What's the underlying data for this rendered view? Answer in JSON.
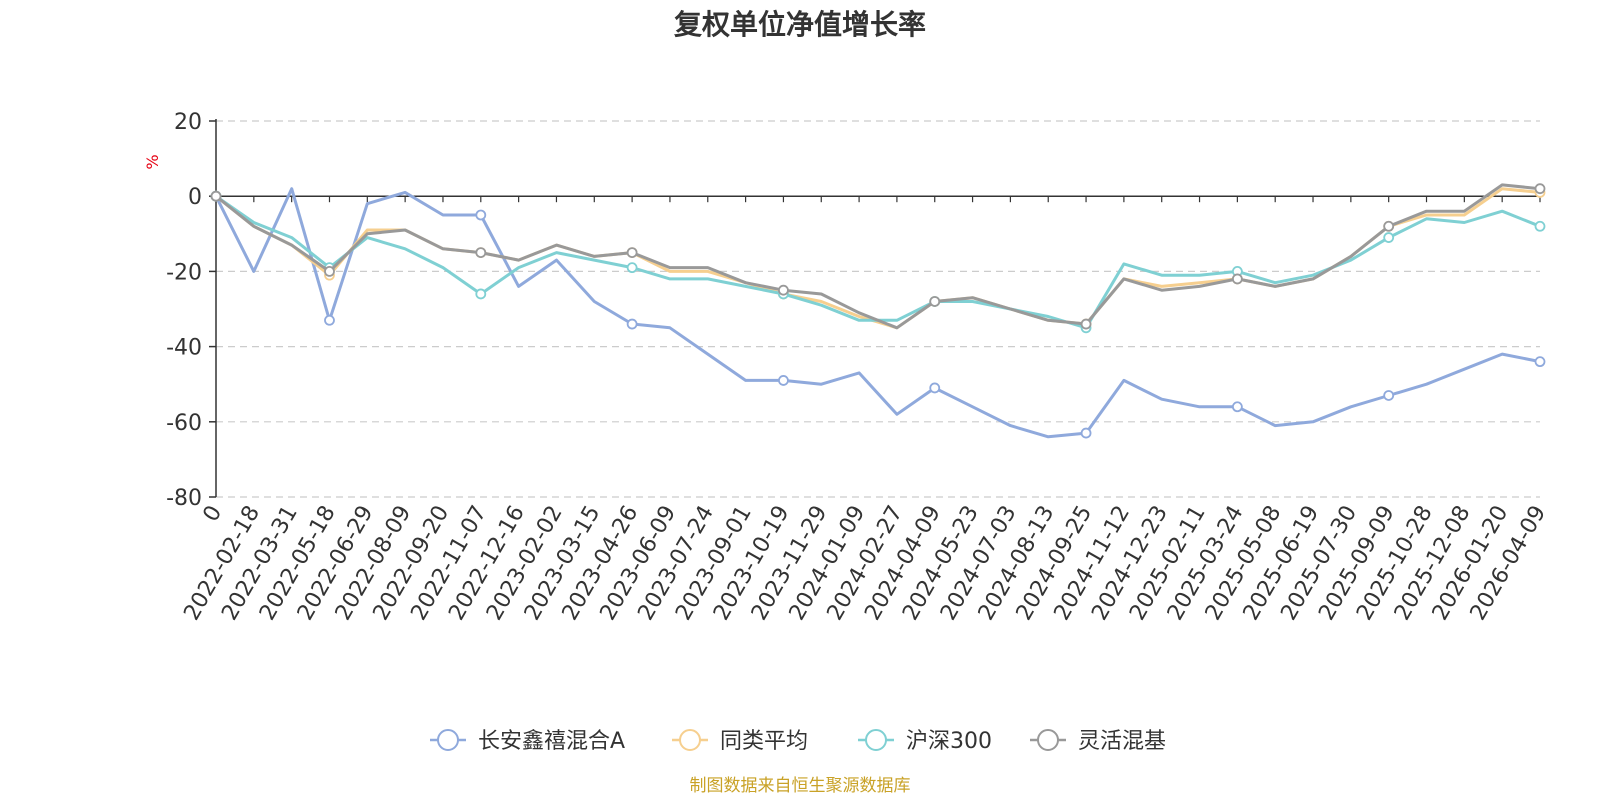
{
  "chart_data": {
    "type": "line",
    "title": "复权单位净值增长率",
    "ylabel": "%",
    "ylim": [
      -80,
      20
    ],
    "yticks": [
      "20",
      "0",
      "-20",
      "-40",
      "-60",
      "-80"
    ],
    "grid": true,
    "legend_position": "bottom",
    "x": [
      "0",
      "2022-02-18",
      "2022-03-31",
      "2022-05-18",
      "2022-06-29",
      "2022-08-09",
      "2022-09-20",
      "2022-11-07",
      "2022-12-16",
      "2023-02-02",
      "2023-03-15",
      "2023-04-26",
      "2023-06-09",
      "2023-07-24",
      "2023-09-01",
      "2023-10-19",
      "2023-11-29",
      "2024-01-09",
      "2024-02-27",
      "2024-04-09",
      "2024-05-23",
      "2024-07-03",
      "2024-08-13",
      "2024-09-25",
      "2024-11-12",
      "2024-12-23",
      "2025-02-11",
      "2025-03-24",
      "2025-05-08",
      "2025-06-19",
      "2025-07-30",
      "2025-09-09",
      "2025-10-28",
      "2025-12-08",
      "2026-01-20",
      "2026-04-09"
    ],
    "series": [
      {
        "name": "长安鑫禧混合A",
        "color": "#8fa9dc",
        "values": [
          0,
          -20,
          2,
          -33,
          -2,
          1,
          -5,
          -5,
          -24,
          -17,
          -28,
          -34,
          -35,
          -42,
          -49,
          -49,
          -50,
          -47,
          -58,
          -51,
          -56,
          -61,
          -64,
          -63,
          -49,
          -54,
          -56,
          -56,
          -61,
          -60,
          -56,
          -53,
          -50,
          -46,
          -42,
          -44
        ]
      },
      {
        "name": "同类平均",
        "color": "#f6cf8f",
        "values": [
          0,
          -8,
          -13,
          -21,
          -9,
          -9,
          -14,
          -15,
          -17,
          -13,
          -16,
          -15,
          -20,
          -20,
          -23,
          -26,
          -28,
          -32,
          -35,
          -28,
          -27,
          -30,
          -33,
          -34,
          -22,
          -24,
          -23,
          -22,
          -24,
          -22,
          -16,
          -8,
          -5,
          -5,
          2,
          1
        ]
      },
      {
        "name": "沪深300",
        "color": "#7fd0d3",
        "values": [
          0,
          -7,
          -11,
          -19,
          -11,
          -14,
          -19,
          -26,
          -19,
          -15,
          -17,
          -19,
          -22,
          -22,
          -24,
          -26,
          -29,
          -33,
          -33,
          -28,
          -28,
          -30,
          -32,
          -35,
          -18,
          -21,
          -21,
          -20,
          -23,
          -21,
          -17,
          -11,
          -6,
          -7,
          -4,
          -8
        ]
      },
      {
        "name": "灵活混基",
        "color": "#999999",
        "values": [
          0,
          -8,
          -13,
          -20,
          -10,
          -9,
          -14,
          -15,
          -17,
          -13,
          -16,
          -15,
          -19,
          -19,
          -23,
          -25,
          -26,
          -31,
          -35,
          -28,
          -27,
          -30,
          -33,
          -34,
          -22,
          -25,
          -24,
          -22,
          -24,
          -22,
          -16,
          -8,
          -4,
          -4,
          3,
          2
        ]
      }
    ],
    "source_note": "制图数据来自恒生聚源数据库"
  }
}
